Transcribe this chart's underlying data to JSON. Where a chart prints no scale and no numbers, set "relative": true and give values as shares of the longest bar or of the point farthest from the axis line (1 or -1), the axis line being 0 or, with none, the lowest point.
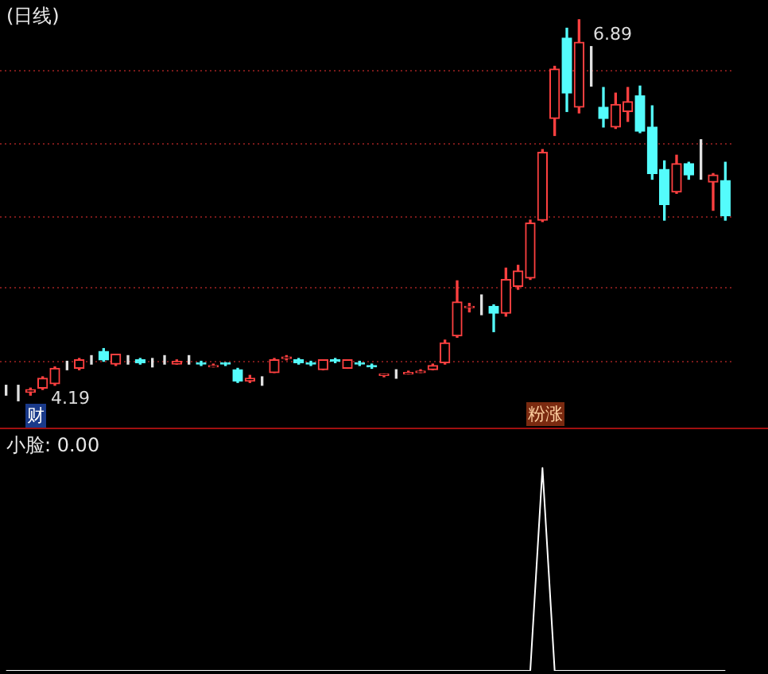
{
  "chart_data": [
    {
      "type": "candlestick",
      "title": "(日线)",
      "categories": [
        null,
        null,
        null,
        null,
        null,
        null,
        null,
        null,
        null,
        null,
        null,
        null,
        null,
        null,
        null,
        null,
        null,
        null,
        null,
        null,
        null,
        null,
        null,
        null,
        null,
        null,
        null,
        null,
        null,
        null,
        null,
        null,
        null,
        null,
        null,
        null,
        null,
        null,
        null,
        null,
        null,
        null,
        null,
        null,
        null,
        null,
        null,
        null,
        null,
        null,
        null,
        null,
        null,
        null,
        null,
        null,
        null,
        null,
        null,
        null
      ],
      "ohlc": [
        [
          4.26,
          4.3,
          4.23,
          4.26
        ],
        [
          4.26,
          4.3,
          4.19,
          4.26
        ],
        [
          4.25,
          4.28,
          4.23,
          4.27
        ],
        [
          4.28,
          4.36,
          4.27,
          4.35
        ],
        [
          4.31,
          4.43,
          4.3,
          4.42
        ],
        [
          4.44,
          4.47,
          4.41,
          4.44
        ],
        [
          4.42,
          4.49,
          4.41,
          4.48
        ],
        [
          4.48,
          4.51,
          4.45,
          4.48
        ],
        [
          4.54,
          4.56,
          4.47,
          4.48
        ],
        [
          4.45,
          4.52,
          4.44,
          4.52
        ],
        [
          4.48,
          4.51,
          4.45,
          4.48
        ],
        [
          4.48,
          4.49,
          4.45,
          4.46
        ],
        [
          4.46,
          4.49,
          4.43,
          4.46
        ],
        [
          4.48,
          4.51,
          4.45,
          4.48
        ],
        [
          4.45,
          4.48,
          4.45,
          4.47
        ],
        [
          4.48,
          4.51,
          4.45,
          4.48
        ],
        [
          4.46,
          4.47,
          4.44,
          4.45
        ],
        [
          4.43,
          4.45,
          4.43,
          4.44
        ],
        [
          4.46,
          4.46,
          4.44,
          4.45
        ],
        [
          4.41,
          4.42,
          4.32,
          4.33
        ],
        [
          4.33,
          4.37,
          4.32,
          4.35
        ],
        [
          4.33,
          4.36,
          4.3,
          4.33
        ],
        [
          4.39,
          4.49,
          4.39,
          4.48
        ],
        [
          4.49,
          4.51,
          4.48,
          4.5
        ],
        [
          4.48,
          4.49,
          4.45,
          4.46
        ],
        [
          4.46,
          4.47,
          4.44,
          4.45
        ],
        [
          4.41,
          4.48,
          4.41,
          4.48
        ],
        [
          4.48,
          4.49,
          4.46,
          4.47
        ],
        [
          4.42,
          4.48,
          4.42,
          4.48
        ],
        [
          4.46,
          4.47,
          4.44,
          4.45
        ],
        [
          4.44,
          4.45,
          4.42,
          4.43
        ],
        [
          4.37,
          4.38,
          4.36,
          4.38
        ],
        [
          4.37,
          4.41,
          4.35,
          4.37
        ],
        [
          4.38,
          4.4,
          4.38,
          4.39
        ],
        [
          4.39,
          4.41,
          4.39,
          4.4
        ],
        [
          4.41,
          4.45,
          4.41,
          4.44
        ],
        [
          4.46,
          4.62,
          4.45,
          4.6
        ],
        [
          4.65,
          5.04,
          4.64,
          4.89
        ],
        [
          4.85,
          4.88,
          4.82,
          4.86
        ],
        [
          4.86,
          4.94,
          4.8,
          4.86
        ],
        [
          4.86,
          4.87,
          4.68,
          4.81
        ],
        [
          4.81,
          5.13,
          4.79,
          5.05
        ],
        [
          5.0,
          5.15,
          4.98,
          5.11
        ],
        [
          5.06,
          5.47,
          5.05,
          5.45
        ],
        [
          5.47,
          5.97,
          5.46,
          5.95
        ],
        [
          6.19,
          6.56,
          6.07,
          6.54
        ],
        [
          6.76,
          6.83,
          6.24,
          6.37
        ],
        [
          6.27,
          6.89,
          6.23,
          6.73
        ],
        [
          6.53,
          6.7,
          6.42,
          6.53
        ],
        [
          6.27,
          6.41,
          6.13,
          6.19
        ],
        [
          6.13,
          6.37,
          6.12,
          6.29
        ],
        [
          6.24,
          6.41,
          6.17,
          6.31
        ],
        [
          6.35,
          6.42,
          6.09,
          6.1
        ],
        [
          6.13,
          6.28,
          5.76,
          5.8
        ],
        [
          5.83,
          5.89,
          5.47,
          5.58
        ],
        [
          5.67,
          5.93,
          5.66,
          5.87
        ],
        [
          5.87,
          5.88,
          5.76,
          5.79
        ],
        [
          5.82,
          6.04,
          5.76,
          5.82
        ],
        [
          5.74,
          5.8,
          5.54,
          5.79
        ],
        [
          5.75,
          5.88,
          5.47,
          5.5
        ]
      ],
      "ylim": [
        4.0,
        7.03
      ],
      "yticks": [
        {
          "value": 4.47,
          "label": null
        },
        {
          "value": 4.99,
          "label": null
        },
        {
          "value": 5.49,
          "label": null
        },
        {
          "value": 6.01,
          "label": null
        },
        {
          "value": 6.53,
          "label": null
        }
      ],
      "grid": "y",
      "annotations": [
        "6.89",
        "4.19",
        "财",
        "粉涨"
      ]
    },
    {
      "type": "line",
      "title": "小脸: 0.00",
      "relative": true,
      "color": "#ffffff",
      "categories": [
        null,
        null,
        null,
        null,
        null,
        null,
        null,
        null,
        null,
        null,
        null,
        null,
        null,
        null,
        null,
        null,
        null,
        null,
        null,
        null,
        null,
        null,
        null,
        null,
        null,
        null,
        null,
        null,
        null,
        null,
        null,
        null,
        null,
        null,
        null,
        null,
        null,
        null,
        null,
        null,
        null,
        null,
        null,
        null,
        null,
        null,
        null,
        null,
        null,
        null,
        null,
        null,
        null,
        null,
        null,
        null,
        null,
        null,
        null,
        null
      ],
      "values": [
        0,
        0,
        0,
        0,
        0,
        0,
        0,
        0,
        0,
        0,
        0,
        0,
        0,
        0,
        0,
        0,
        0,
        0,
        0,
        0,
        0,
        0,
        0,
        0,
        0,
        0,
        0,
        0,
        0,
        0,
        0,
        0,
        0,
        0,
        0,
        0,
        0,
        0,
        0,
        0,
        0,
        0,
        0,
        0,
        1,
        0,
        0,
        0,
        0,
        0,
        0,
        0,
        0,
        0,
        0,
        0,
        0,
        0,
        0,
        0
      ]
    }
  ]
}
